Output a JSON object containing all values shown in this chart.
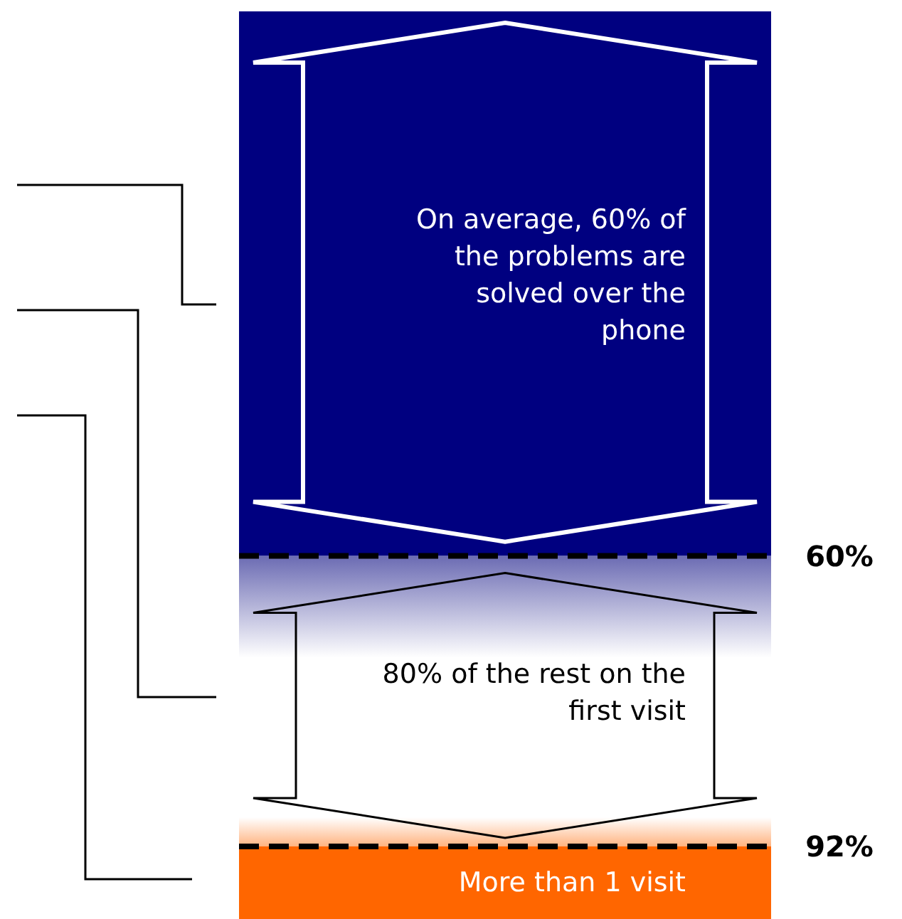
{
  "chart_data": {
    "type": "bar",
    "stacked": true,
    "categories": [
      null
    ],
    "ylim": [
      100,
      0
    ],
    "series": [
      {
        "color": "#000080",
        "values": [
          60
        ]
      },
      {
        "color": "#ffffff",
        "values": [
          32
        ]
      },
      {
        "name": "More than 1 visit",
        "color": "#ff6600",
        "values": [
          8
        ]
      }
    ],
    "ref_lines": [
      {
        "axis": "y",
        "value": 60,
        "label": "60%",
        "line_style": "dashed",
        "color": "#000000"
      },
      {
        "axis": "y",
        "value": 92,
        "label": "92%",
        "line_style": "dashed",
        "color": "#000000"
      }
    ],
    "annotations": [
      "On average, 60% of the problems are solved over the phone",
      "80% of the rest on the first visit"
    ]
  }
}
